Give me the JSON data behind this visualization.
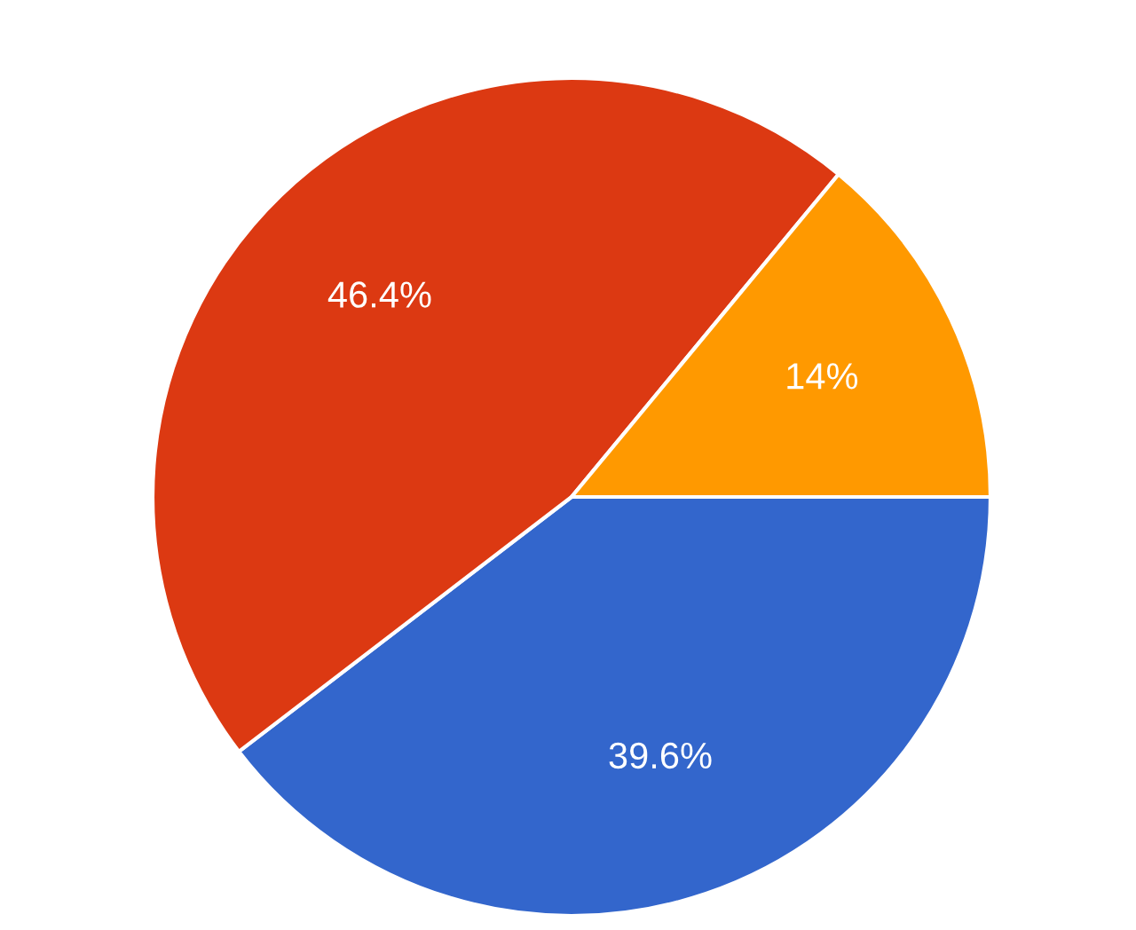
{
  "chart_data": {
    "type": "pie",
    "categories": [
      null,
      null,
      null
    ],
    "values": [
      39.6,
      46.4,
      14
    ],
    "colors": [
      "#3366cc",
      "#dc3912",
      "#ff9900"
    ],
    "value_labels": [
      "39.6%",
      "46.4%",
      "14%"
    ]
  }
}
